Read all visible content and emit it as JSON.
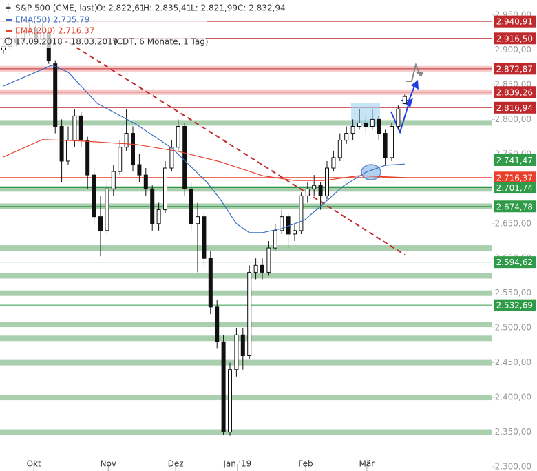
{
  "chart_data": {
    "type": "candlestick",
    "header": {
      "name": "S&P 500 (CME, last)",
      "open": "O: 2.822,61",
      "high": "H: 2.835,41",
      "low": "L: 2.821,99",
      "close": "C: 2.832,94",
      "range": "17.09.2018 - 18.03.2019",
      "info": "(CDT, 6 Monate, 1 Tag)"
    },
    "x": [
      0,
      2,
      4,
      6,
      8,
      10,
      12,
      14,
      16,
      18,
      20,
      22,
      24,
      26,
      28,
      30,
      32,
      34,
      36,
      38,
      40,
      42,
      44,
      46,
      48,
      50,
      52,
      54,
      56,
      58,
      60,
      62,
      64,
      66,
      68,
      70,
      72,
      74,
      76,
      78,
      80,
      82,
      84,
      86,
      88,
      90,
      92,
      94,
      96,
      98,
      100,
      102,
      104,
      106,
      108,
      110,
      112,
      114,
      116,
      118,
      120,
      122,
      124
    ],
    "open": [
      2900,
      2905,
      2915,
      2910,
      2925,
      2930,
      2915,
      2925,
      2880,
      2790,
      2740,
      2770,
      2805,
      2770,
      2720,
      2660,
      2640,
      2700,
      2725,
      2760,
      2780,
      2735,
      2720,
      2700,
      2650,
      2670,
      2730,
      2760,
      2790,
      2700,
      2650,
      2660,
      2600,
      2530,
      2480,
      2350,
      2440,
      2490,
      2460,
      2580,
      2590,
      2580,
      2615,
      2640,
      2660,
      2635,
      2640,
      2690,
      2700,
      2705,
      2690,
      2730,
      2745,
      2770,
      2780,
      2790,
      2795,
      2790,
      2800,
      2780,
      2745,
      2790,
      2822.61
    ],
    "high": [
      2912,
      2920,
      2922,
      2932,
      2941,
      2935,
      2938,
      2928,
      2885,
      2800,
      2790,
      2815,
      2810,
      2775,
      2730,
      2690,
      2710,
      2735,
      2770,
      2815,
      2790,
      2750,
      2730,
      2705,
      2680,
      2740,
      2770,
      2800,
      2795,
      2710,
      2680,
      2665,
      2610,
      2540,
      2490,
      2450,
      2500,
      2500,
      2590,
      2600,
      2600,
      2625,
      2650,
      2670,
      2665,
      2650,
      2695,
      2710,
      2720,
      2710,
      2740,
      2755,
      2780,
      2790,
      2800,
      2815,
      2805,
      2815,
      2805,
      2785,
      2795,
      2820,
      2835.41
    ],
    "low": [
      2895,
      2900,
      2905,
      2908,
      2920,
      2910,
      2912,
      2880,
      2780,
      2710,
      2735,
      2760,
      2760,
      2700,
      2650,
      2603,
      2635,
      2690,
      2720,
      2755,
      2725,
      2710,
      2690,
      2640,
      2640,
      2665,
      2725,
      2755,
      2690,
      2640,
      2580,
      2590,
      2520,
      2470,
      2346,
      2345,
      2430,
      2440,
      2455,
      2570,
      2570,
      2575,
      2610,
      2635,
      2615,
      2625,
      2635,
      2680,
      2690,
      2670,
      2685,
      2725,
      2740,
      2765,
      2770,
      2785,
      2780,
      2785,
      2770,
      2735,
      2740,
      2785,
      2821.99
    ],
    "close": [
      2905,
      2915,
      2910,
      2925,
      2930,
      2915,
      2925,
      2885,
      2790,
      2740,
      2770,
      2805,
      2770,
      2720,
      2660,
      2640,
      2700,
      2725,
      2760,
      2780,
      2735,
      2720,
      2700,
      2650,
      2670,
      2730,
      2760,
      2790,
      2700,
      2650,
      2660,
      2600,
      2530,
      2480,
      2350,
      2440,
      2490,
      2460,
      2580,
      2590,
      2580,
      2615,
      2640,
      2660,
      2635,
      2640,
      2690,
      2700,
      2705,
      2690,
      2730,
      2745,
      2770,
      2780,
      2790,
      2795,
      2790,
      2800,
      2780,
      2745,
      2790,
      2815,
      2832.94
    ],
    "up_color": "#ffffff",
    "down_color": "#111111",
    "series": [
      {
        "name": "EMA(50)",
        "value_label": "2.735,79",
        "color": "#3a6fc4",
        "x": [
          0,
          15,
          20,
          29,
          41,
          52,
          63,
          67,
          72,
          76,
          80,
          86,
          93,
          99,
          105,
          112,
          118,
          124
        ],
        "values": [
          2848,
          2878,
          2868,
          2823,
          2793,
          2759,
          2709,
          2685,
          2650,
          2637,
          2637,
          2643,
          2655,
          2679,
          2704,
          2724,
          2734,
          2735.79
        ]
      },
      {
        "name": "EMA(200)",
        "value_label": "2.716,37",
        "color": "#e8402a",
        "x": [
          0,
          12,
          24,
          41,
          54,
          67,
          80,
          90,
          99,
          110,
          124
        ],
        "values": [
          2746,
          2771,
          2769,
          2764,
          2754,
          2739,
          2719,
          2712,
          2712,
          2719,
          2716.37
        ]
      }
    ],
    "levels": {
      "values": [
        2940.91,
        2916.5,
        2872.87,
        2839.26,
        2816.94,
        2741.47,
        2716.37,
        2701.74,
        2674.78,
        2594.62,
        2532.69
      ],
      "value_labels": [
        "2.940,91",
        "2.916,50",
        "2.872,87",
        "2.839,26",
        "2.816,94",
        "2.741,47",
        "2.716,37",
        "2.701,74",
        "2.674,78",
        "2.594,62",
        "2.532,69"
      ],
      "colors": [
        "#c0292b",
        "#c0292b",
        "#c0292b",
        "#c0292b",
        "#c0292b",
        "#2f9a47",
        "#e8402a",
        "#2f9a47",
        "#2f9a47",
        "#2f9a47",
        "#2f9a47"
      ]
    },
    "zones": {
      "values": [
        2872.87,
        2839.26,
        2795,
        2700,
        2675,
        2615,
        2575,
        2550,
        2505,
        2485,
        2450,
        2400,
        2350
      ],
      "colors": [
        "#f6c8c8",
        "#f6c8c8",
        "#a9cfae",
        "#a9cfae",
        "#a9cfae",
        "#a9cfae",
        "#a9cfae",
        "#a9cfae",
        "#a9cfae",
        "#a9cfae",
        "#a9cfae",
        "#a9cfae",
        "#a9cfae"
      ]
    },
    "xlim": [
      0,
      152
    ],
    "xticks": [
      {
        "value": 9.4,
        "label": "Okt"
      },
      {
        "value": 32.4,
        "label": "Nov"
      },
      {
        "value": 53.2,
        "label": "Dez"
      },
      {
        "value": 72.3,
        "label": "Jan '19"
      },
      {
        "value": 93.4,
        "label": "Feb"
      },
      {
        "value": 112.3,
        "label": "Mär"
      }
    ],
    "ylim": [
      2300,
      2950
    ],
    "yticks": [
      {
        "value": 2300,
        "label": "2.300,00"
      },
      {
        "value": 2350,
        "label": "2.350,00"
      },
      {
        "value": 2400,
        "label": "2.400,00"
      },
      {
        "value": 2450,
        "label": "2.450,00"
      },
      {
        "value": 2500,
        "label": "2.500,00"
      },
      {
        "value": 2550,
        "label": "2.550,00"
      },
      {
        "value": 2600,
        "label": "2.600,00"
      },
      {
        "value": 2650,
        "label": "2.650,00"
      },
      {
        "value": 2700,
        "label": "2.700,00"
      },
      {
        "value": 2750,
        "label": "2.750,00"
      },
      {
        "value": 2800,
        "label": "2.800,00"
      },
      {
        "value": 2850,
        "label": "2.850,00"
      },
      {
        "value": 2900,
        "label": "2.900,00"
      },
      {
        "value": 2950,
        "label": "2.950,00"
      }
    ]
  }
}
